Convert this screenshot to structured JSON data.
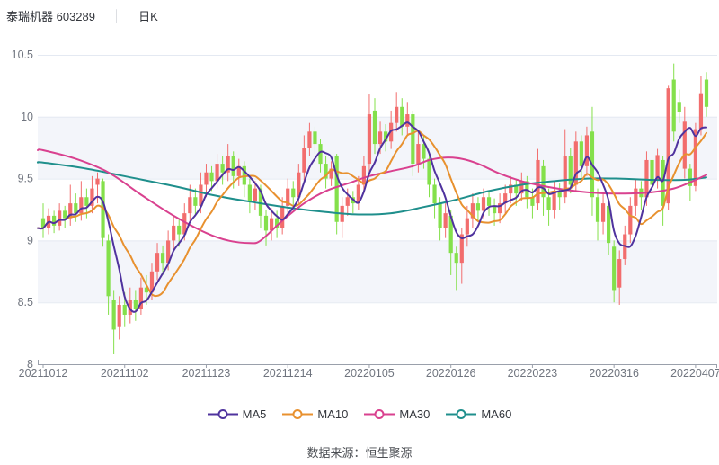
{
  "header": {
    "title": "泰瑞机器 603289",
    "separator": "│",
    "period": "日K"
  },
  "footer": {
    "source": "数据来源：恒生聚源"
  },
  "legend": {
    "position": "bottom",
    "items": [
      "MA5",
      "MA10",
      "MA30",
      "MA60"
    ]
  },
  "chart_data": {
    "type": "candlestick",
    "title": "泰瑞机器 603289 日K",
    "ylim": [
      8,
      10.5
    ],
    "y_tick_values": [
      10.5,
      10,
      9.5,
      9,
      8.5,
      8
    ],
    "y_tick_labels": [
      "10.5",
      "10",
      "9.5",
      "9",
      "8.5",
      "8"
    ],
    "x_tick_labels": [
      "20211012",
      "20211102",
      "20211123",
      "20211214",
      "20220105",
      "20220126",
      "20220223",
      "20220316",
      "20220407"
    ],
    "x_tick_indices": [
      0,
      15,
      30,
      45,
      60,
      75,
      90,
      105,
      120
    ],
    "grid": "horizontal-gridlines-with-alternating-bands",
    "colors": {
      "up": "#f26d6d",
      "down": "#84e04b",
      "band": "#f3f5fa",
      "gridline": "#e4e9f2",
      "axis": "#9aa0ab",
      "tick_text": "#70757f"
    },
    "candles_format": [
      "open",
      "high",
      "low",
      "close"
    ],
    "candles": [
      [
        9.18,
        9.3,
        9.02,
        9.1
      ],
      [
        9.1,
        9.26,
        9.05,
        9.2
      ],
      [
        9.2,
        9.24,
        9.06,
        9.12
      ],
      [
        9.12,
        9.3,
        9.08,
        9.24
      ],
      [
        9.24,
        9.28,
        9.1,
        9.18
      ],
      [
        9.18,
        9.45,
        9.12,
        9.3
      ],
      [
        9.3,
        9.38,
        9.15,
        9.22
      ],
      [
        9.22,
        9.48,
        9.16,
        9.35
      ],
      [
        9.35,
        9.42,
        9.18,
        9.28
      ],
      [
        9.28,
        9.52,
        9.22,
        9.42
      ],
      [
        9.45,
        9.55,
        9.3,
        9.5
      ],
      [
        9.48,
        9.5,
        8.95,
        9.02
      ],
      [
        9.0,
        9.05,
        8.4,
        8.55
      ],
      [
        8.52,
        8.6,
        8.08,
        8.28
      ],
      [
        8.3,
        8.55,
        8.2,
        8.48
      ],
      [
        8.48,
        8.58,
        8.3,
        8.4
      ],
      [
        8.4,
        8.62,
        8.33,
        8.52
      ],
      [
        8.52,
        8.6,
        8.35,
        8.45
      ],
      [
        8.45,
        8.7,
        8.4,
        8.62
      ],
      [
        8.62,
        8.72,
        8.48,
        8.58
      ],
      [
        8.58,
        8.82,
        8.52,
        8.75
      ],
      [
        8.75,
        8.98,
        8.68,
        8.9
      ],
      [
        8.9,
        8.96,
        8.72,
        8.82
      ],
      [
        8.82,
        9.08,
        8.76,
        9.0
      ],
      [
        9.0,
        9.2,
        8.92,
        9.12
      ],
      [
        9.12,
        9.18,
        8.95,
        9.05
      ],
      [
        9.05,
        9.3,
        9.0,
        9.22
      ],
      [
        9.22,
        9.45,
        9.15,
        9.35
      ],
      [
        9.35,
        9.42,
        9.2,
        9.28
      ],
      [
        9.28,
        9.55,
        9.22,
        9.45
      ],
      [
        9.45,
        9.62,
        9.35,
        9.55
      ],
      [
        9.55,
        9.6,
        9.4,
        9.48
      ],
      [
        9.48,
        9.7,
        9.42,
        9.62
      ],
      [
        9.62,
        9.68,
        9.45,
        9.55
      ],
      [
        9.55,
        9.78,
        9.48,
        9.68
      ],
      [
        9.68,
        9.72,
        9.42,
        9.52
      ],
      [
        9.52,
        9.66,
        9.44,
        9.6
      ],
      [
        9.6,
        9.64,
        9.35,
        9.45
      ],
      [
        9.45,
        9.5,
        9.22,
        9.32
      ],
      [
        9.32,
        9.48,
        9.25,
        9.42
      ],
      [
        9.42,
        9.45,
        9.1,
        9.2
      ],
      [
        9.2,
        9.25,
        8.96,
        9.08
      ],
      [
        9.08,
        9.26,
        9.0,
        9.18
      ],
      [
        9.18,
        9.24,
        9.02,
        9.1
      ],
      [
        9.1,
        9.35,
        9.05,
        9.28
      ],
      [
        9.28,
        9.5,
        9.2,
        9.42
      ],
      [
        9.42,
        9.48,
        9.26,
        9.35
      ],
      [
        9.35,
        9.62,
        9.3,
        9.55
      ],
      [
        9.55,
        9.85,
        9.48,
        9.75
      ],
      [
        9.75,
        9.95,
        9.68,
        9.88
      ],
      [
        9.88,
        9.92,
        9.7,
        9.78
      ],
      [
        9.78,
        9.82,
        9.55,
        9.62
      ],
      [
        9.62,
        9.68,
        9.42,
        9.5
      ],
      [
        9.5,
        9.64,
        9.44,
        9.58
      ],
      [
        9.68,
        9.7,
        9.05,
        9.15
      ],
      [
        9.15,
        9.35,
        9.02,
        9.28
      ],
      [
        9.28,
        9.42,
        9.2,
        9.35
      ],
      [
        9.35,
        9.4,
        9.22,
        9.3
      ],
      [
        9.3,
        9.52,
        9.25,
        9.45
      ],
      [
        9.45,
        9.68,
        9.38,
        9.6
      ],
      [
        9.62,
        10.18,
        9.55,
        10.02
      ],
      [
        10.05,
        10.15,
        9.7,
        9.78
      ],
      [
        9.78,
        9.96,
        9.7,
        9.88
      ],
      [
        9.88,
        9.94,
        9.72,
        9.8
      ],
      [
        9.8,
        10.05,
        9.74,
        9.95
      ],
      [
        9.95,
        10.2,
        9.88,
        10.08
      ],
      [
        10.08,
        10.15,
        9.85,
        9.92
      ],
      [
        9.92,
        10.12,
        9.85,
        10.02
      ],
      [
        10.02,
        10.05,
        9.52,
        9.62
      ],
      [
        9.62,
        9.88,
        9.55,
        9.78
      ],
      [
        9.78,
        9.85,
        9.58,
        9.66
      ],
      [
        9.66,
        9.7,
        9.35,
        9.45
      ],
      [
        9.45,
        9.5,
        9.18,
        9.3
      ],
      [
        9.3,
        9.35,
        9.0,
        9.1
      ],
      [
        9.1,
        9.3,
        9.02,
        9.22
      ],
      [
        9.2,
        9.25,
        8.72,
        8.9
      ],
      [
        8.9,
        8.95,
        8.6,
        8.82
      ],
      [
        8.82,
        9.1,
        8.65,
        9.05
      ],
      [
        9.05,
        9.28,
        8.95,
        9.18
      ],
      [
        9.18,
        9.38,
        9.1,
        9.3
      ],
      [
        9.3,
        9.35,
        9.15,
        9.24
      ],
      [
        9.24,
        9.42,
        9.18,
        9.35
      ],
      [
        9.35,
        9.4,
        9.2,
        9.28
      ],
      [
        9.28,
        9.34,
        9.12,
        9.22
      ],
      [
        9.22,
        9.38,
        9.14,
        9.3
      ],
      [
        9.3,
        9.45,
        9.22,
        9.38
      ],
      [
        9.38,
        9.52,
        9.3,
        9.45
      ],
      [
        9.45,
        9.5,
        9.28,
        9.38
      ],
      [
        9.38,
        9.55,
        9.32,
        9.48
      ],
      [
        9.48,
        9.52,
        9.26,
        9.35
      ],
      [
        9.35,
        9.42,
        9.18,
        9.28
      ],
      [
        9.3,
        9.74,
        9.25,
        9.65
      ],
      [
        9.6,
        9.65,
        9.2,
        9.35
      ],
      [
        9.35,
        9.42,
        9.12,
        9.25
      ],
      [
        9.25,
        9.48,
        9.18,
        9.4
      ],
      [
        9.4,
        9.46,
        9.25,
        9.35
      ],
      [
        9.35,
        9.9,
        9.3,
        9.68
      ],
      [
        9.68,
        9.75,
        9.38,
        9.45
      ],
      [
        9.45,
        9.88,
        9.4,
        9.8
      ],
      [
        9.8,
        9.85,
        9.5,
        9.6
      ],
      [
        9.6,
        9.92,
        9.52,
        9.85
      ],
      [
        9.88,
        10.08,
        9.2,
        9.35
      ],
      [
        9.35,
        9.42,
        9.0,
        9.15
      ],
      [
        9.15,
        9.38,
        9.05,
        9.3
      ],
      [
        9.28,
        9.32,
        8.88,
        8.98
      ],
      [
        8.95,
        9.0,
        8.5,
        8.6
      ],
      [
        8.62,
        8.92,
        8.48,
        8.85
      ],
      [
        8.85,
        9.12,
        8.8,
        9.05
      ],
      [
        9.05,
        9.35,
        8.98,
        9.28
      ],
      [
        9.28,
        9.5,
        9.2,
        9.42
      ],
      [
        9.42,
        9.48,
        9.25,
        9.35
      ],
      [
        9.35,
        9.72,
        9.28,
        9.65
      ],
      [
        9.65,
        9.7,
        9.35,
        9.45
      ],
      [
        9.49,
        9.74,
        9.42,
        9.69
      ],
      [
        9.65,
        9.68,
        9.12,
        9.28
      ],
      [
        9.3,
        10.25,
        9.25,
        10.23
      ],
      [
        10.3,
        10.43,
        9.8,
        9.88
      ],
      [
        10.12,
        10.22,
        9.95,
        10.04
      ],
      [
        9.58,
        10.08,
        9.5,
        9.96
      ],
      [
        9.58,
        9.62,
        9.32,
        9.44
      ],
      [
        9.44,
        9.95,
        9.4,
        9.9
      ],
      [
        9.9,
        10.33,
        9.85,
        10.19
      ],
      [
        10.3,
        10.36,
        10.0,
        10.08
      ]
    ],
    "moving_averages": [
      {
        "name": "MA5",
        "color": "#4f339e",
        "window": 5,
        "source": "close"
      },
      {
        "name": "MA10",
        "color": "#e8912f",
        "window": 10,
        "source": "close"
      },
      {
        "name": "MA30",
        "color": "#d9418f",
        "control_points": [
          [
            0,
            9.73
          ],
          [
            6,
            9.66
          ],
          [
            12,
            9.55
          ],
          [
            18,
            9.37
          ],
          [
            24,
            9.2
          ],
          [
            30,
            9.06
          ],
          [
            34,
            9.0
          ],
          [
            38,
            8.98
          ],
          [
            40,
            9.0
          ],
          [
            44,
            9.16
          ],
          [
            48,
            9.3
          ],
          [
            52,
            9.4
          ],
          [
            56,
            9.46
          ],
          [
            60,
            9.52
          ],
          [
            64,
            9.56
          ],
          [
            68,
            9.6
          ],
          [
            71,
            9.65
          ],
          [
            74,
            9.67
          ],
          [
            77,
            9.66
          ],
          [
            80,
            9.62
          ],
          [
            84,
            9.54
          ],
          [
            88,
            9.48
          ],
          [
            92,
            9.44
          ],
          [
            96,
            9.41
          ],
          [
            100,
            9.39
          ],
          [
            104,
            9.38
          ],
          [
            108,
            9.38
          ],
          [
            112,
            9.39
          ],
          [
            116,
            9.42
          ],
          [
            119,
            9.47
          ],
          [
            122,
            9.53
          ]
        ]
      },
      {
        "name": "MA60",
        "color": "#1f8f8c",
        "control_points": [
          [
            0,
            9.63
          ],
          [
            8,
            9.58
          ],
          [
            16,
            9.51
          ],
          [
            24,
            9.44
          ],
          [
            32,
            9.36
          ],
          [
            40,
            9.3
          ],
          [
            46,
            9.26
          ],
          [
            52,
            9.23
          ],
          [
            58,
            9.21
          ],
          [
            64,
            9.22
          ],
          [
            70,
            9.27
          ],
          [
            76,
            9.33
          ],
          [
            82,
            9.4
          ],
          [
            88,
            9.45
          ],
          [
            94,
            9.48
          ],
          [
            100,
            9.5
          ],
          [
            106,
            9.5
          ],
          [
            112,
            9.49
          ],
          [
            118,
            9.49
          ],
          [
            122,
            9.51
          ]
        ]
      }
    ]
  }
}
